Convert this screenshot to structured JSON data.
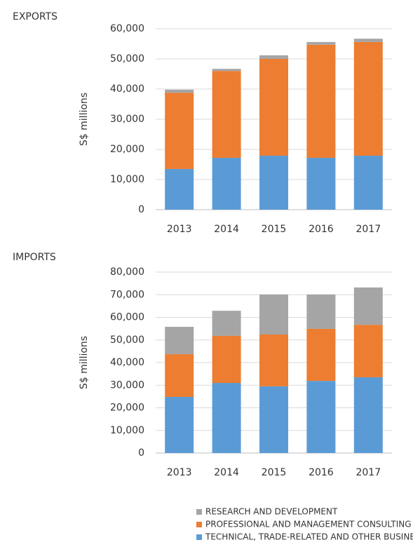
{
  "chart_data": [
    {
      "type": "stacked_bar",
      "title": "EXPORTS",
      "ylabel": "S$ millions",
      "categories": [
        "2013",
        "2014",
        "2015",
        "2016",
        "2017"
      ],
      "series": [
        {
          "name": "TECHNICAL, TRADE-RELATED AND OTHER BUSINESS SERVICES",
          "color": "#5b9bd5",
          "values": [
            13500,
            17200,
            17900,
            17200,
            17900
          ]
        },
        {
          "name": "PROFESSIONAL AND MANAGEMENT CONSULTING",
          "color": "#ed7d31",
          "values": [
            25300,
            28800,
            32100,
            37500,
            37700
          ]
        },
        {
          "name": "RESEARCH AND DEVELOPMENT",
          "color": "#a5a5a5",
          "values": [
            1000,
            700,
            1200,
            900,
            1100
          ]
        }
      ],
      "ylim": [
        0,
        60000
      ],
      "yticks": [
        0,
        {
          "value": 10000,
          "label": "10,000"
        },
        {
          "value": 20000,
          "label": "20,000"
        },
        {
          "value": 30000,
          "label": "30,000"
        },
        {
          "value": 40000,
          "label": "40,000"
        },
        {
          "value": 50000,
          "label": "50,000"
        },
        {
          "value": 60000,
          "label": "60,000"
        }
      ],
      "grid": true,
      "legend": "bottom"
    },
    {
      "type": "stacked_bar",
      "title": "IMPORTS",
      "ylabel": "S$ millions",
      "categories": [
        "2013",
        "2014",
        "2015",
        "2016",
        "2017"
      ],
      "series": [
        {
          "name": "TECHNICAL, TRADE-RELATED AND OTHER BUSINESS SERVICES",
          "color": "#5b9bd5",
          "values": [
            24800,
            31000,
            29500,
            31900,
            33500
          ]
        },
        {
          "name": "PROFESSIONAL AND MANAGEMENT CONSULTING",
          "color": "#ed7d31",
          "values": [
            18900,
            20800,
            22900,
            23000,
            23200
          ]
        },
        {
          "name": "RESEARCH AND DEVELOPMENT",
          "color": "#a5a5a5",
          "values": [
            12100,
            11100,
            17700,
            15200,
            16500
          ]
        }
      ],
      "ylim": [
        0,
        80000
      ],
      "yticks": [
        0,
        {
          "value": 10000,
          "label": "10,000"
        },
        {
          "value": 20000,
          "label": "20,000"
        },
        {
          "value": 30000,
          "label": "30,000"
        },
        {
          "value": 40000,
          "label": "40,000"
        },
        {
          "value": 50000,
          "label": "50,000"
        },
        {
          "value": 60000,
          "label": "60,000"
        },
        {
          "value": 70000,
          "label": "70,000"
        },
        {
          "value": 80000,
          "label": "80,000"
        }
      ],
      "grid": true,
      "legend": "bottom"
    }
  ]
}
